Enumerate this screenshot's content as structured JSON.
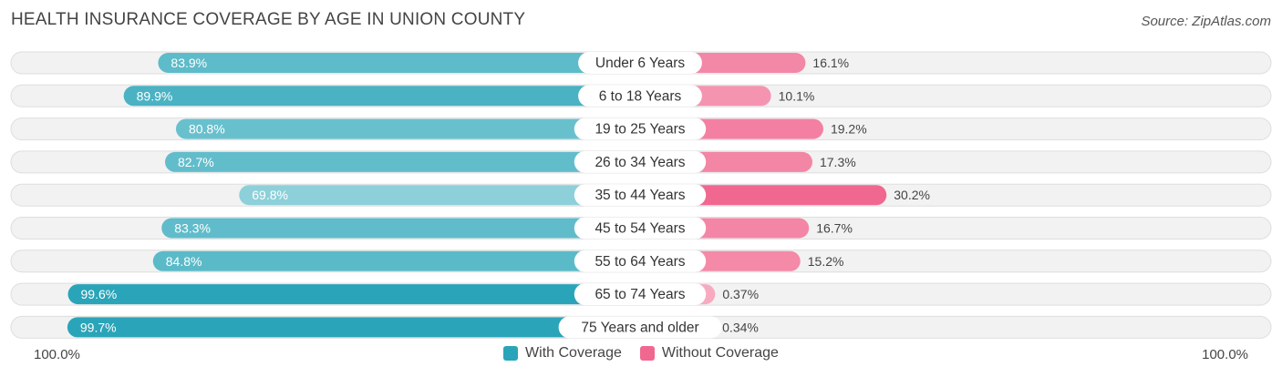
{
  "title": "HEALTH INSURANCE COVERAGE BY AGE IN UNION COUNTY",
  "source": "Source: ZipAtlas.com",
  "axis": {
    "left_label": "100.0%",
    "right_label": "100.0%"
  },
  "legend": {
    "with_label": "With Coverage",
    "without_label": "Without Coverage"
  },
  "colors": {
    "with_strong": "#2aa4b8",
    "with_light": "#8dd0d9",
    "without_strong": "#f06890",
    "without_light": "#f7aac0"
  },
  "chart_data": {
    "type": "bar",
    "orientation": "horizontal-diverging",
    "title": "HEALTH INSURANCE COVERAGE BY AGE IN UNION COUNTY",
    "categories": [
      "Under 6 Years",
      "6 to 18 Years",
      "19 to 25 Years",
      "26 to 34 Years",
      "35 to 44 Years",
      "45 to 54 Years",
      "55 to 64 Years",
      "65 to 74 Years",
      "75 Years and older"
    ],
    "series": [
      {
        "name": "With Coverage",
        "values": [
          83.9,
          89.9,
          80.8,
          82.7,
          69.8,
          83.3,
          84.8,
          99.6,
          99.7
        ],
        "labels": [
          "83.9%",
          "89.9%",
          "80.8%",
          "82.7%",
          "69.8%",
          "83.3%",
          "84.8%",
          "99.6%",
          "99.7%"
        ]
      },
      {
        "name": "Without Coverage",
        "values": [
          16.1,
          10.1,
          19.2,
          17.3,
          30.2,
          16.7,
          15.2,
          0.37,
          0.34
        ],
        "labels": [
          "16.1%",
          "10.1%",
          "19.2%",
          "17.3%",
          "30.2%",
          "16.7%",
          "15.2%",
          "0.37%",
          "0.34%"
        ]
      }
    ],
    "xlim": [
      0,
      100
    ],
    "legend_position": "bottom-center"
  }
}
